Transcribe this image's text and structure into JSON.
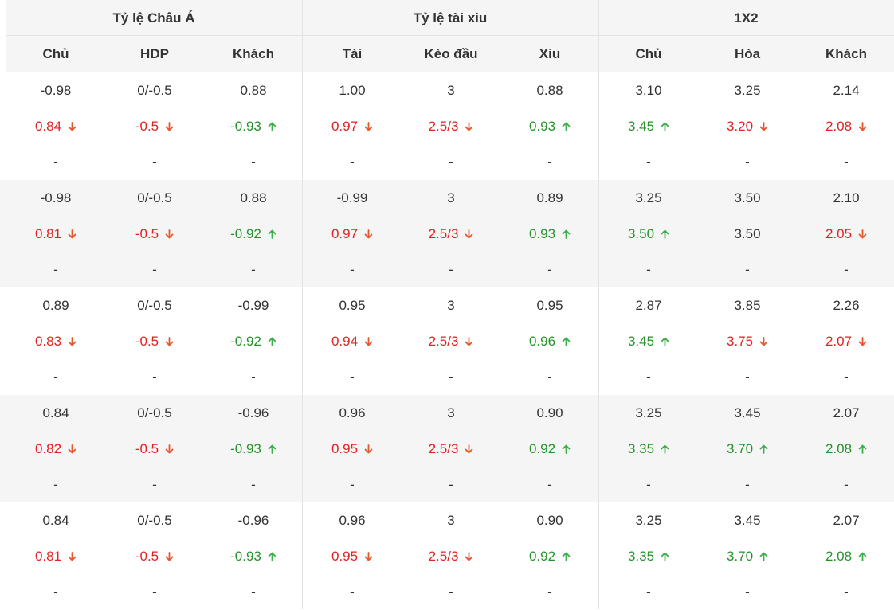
{
  "colors": {
    "down": "#e22222",
    "up": "#27922c",
    "arrow_down": "#e8562a",
    "arrow_up": "#3cae4a",
    "header_bg": "#f5f5f5",
    "text": "#333333"
  },
  "groups": [
    "Tỷ lệ Châu Á",
    "Tỷ lệ tài xiu",
    "1X2"
  ],
  "columns": [
    "Chủ",
    "HDP",
    "Khách",
    "Tài",
    "Kèo đầu",
    "Xiu",
    "Chủ",
    "Hòa",
    "Khách"
  ],
  "placeholder": "-",
  "rows": [
    {
      "open": [
        "-0.98",
        "0/-0.5",
        "0.88",
        "1.00",
        "3",
        "0.88",
        "3.10",
        "3.25",
        "2.14"
      ],
      "live": [
        {
          "v": "0.84",
          "d": "down"
        },
        {
          "v": "-0.5",
          "d": "down"
        },
        {
          "v": "-0.93",
          "d": "up"
        },
        {
          "v": "0.97",
          "d": "down"
        },
        {
          "v": "2.5/3",
          "d": "down"
        },
        {
          "v": "0.93",
          "d": "up"
        },
        {
          "v": "3.45",
          "d": "up"
        },
        {
          "v": "3.20",
          "d": "down"
        },
        {
          "v": "2.08",
          "d": "down"
        }
      ]
    },
    {
      "open": [
        "-0.98",
        "0/-0.5",
        "0.88",
        "-0.99",
        "3",
        "0.89",
        "3.25",
        "3.50",
        "2.10"
      ],
      "live": [
        {
          "v": "0.81",
          "d": "down"
        },
        {
          "v": "-0.5",
          "d": "down"
        },
        {
          "v": "-0.92",
          "d": "up"
        },
        {
          "v": "0.97",
          "d": "down"
        },
        {
          "v": "2.5/3",
          "d": "down"
        },
        {
          "v": "0.93",
          "d": "up"
        },
        {
          "v": "3.50",
          "d": "up"
        },
        {
          "v": "3.50",
          "d": "same"
        },
        {
          "v": "2.05",
          "d": "down"
        }
      ]
    },
    {
      "open": [
        "0.89",
        "0/-0.5",
        "-0.99",
        "0.95",
        "3",
        "0.95",
        "2.87",
        "3.85",
        "2.26"
      ],
      "live": [
        {
          "v": "0.83",
          "d": "down"
        },
        {
          "v": "-0.5",
          "d": "down"
        },
        {
          "v": "-0.92",
          "d": "up"
        },
        {
          "v": "0.94",
          "d": "down"
        },
        {
          "v": "2.5/3",
          "d": "down"
        },
        {
          "v": "0.96",
          "d": "up"
        },
        {
          "v": "3.45",
          "d": "up"
        },
        {
          "v": "3.75",
          "d": "down"
        },
        {
          "v": "2.07",
          "d": "down"
        }
      ]
    },
    {
      "open": [
        "0.84",
        "0/-0.5",
        "-0.96",
        "0.96",
        "3",
        "0.90",
        "3.25",
        "3.45",
        "2.07"
      ],
      "live": [
        {
          "v": "0.82",
          "d": "down"
        },
        {
          "v": "-0.5",
          "d": "down"
        },
        {
          "v": "-0.93",
          "d": "up"
        },
        {
          "v": "0.95",
          "d": "down"
        },
        {
          "v": "2.5/3",
          "d": "down"
        },
        {
          "v": "0.92",
          "d": "up"
        },
        {
          "v": "3.35",
          "d": "up"
        },
        {
          "v": "3.70",
          "d": "up"
        },
        {
          "v": "2.08",
          "d": "up"
        }
      ]
    },
    {
      "open": [
        "0.84",
        "0/-0.5",
        "-0.96",
        "0.96",
        "3",
        "0.90",
        "3.25",
        "3.45",
        "2.07"
      ],
      "live": [
        {
          "v": "0.81",
          "d": "down"
        },
        {
          "v": "-0.5",
          "d": "down"
        },
        {
          "v": "-0.93",
          "d": "up"
        },
        {
          "v": "0.95",
          "d": "down"
        },
        {
          "v": "2.5/3",
          "d": "down"
        },
        {
          "v": "0.92",
          "d": "up"
        },
        {
          "v": "3.35",
          "d": "up"
        },
        {
          "v": "3.70",
          "d": "up"
        },
        {
          "v": "2.08",
          "d": "up"
        }
      ]
    }
  ]
}
